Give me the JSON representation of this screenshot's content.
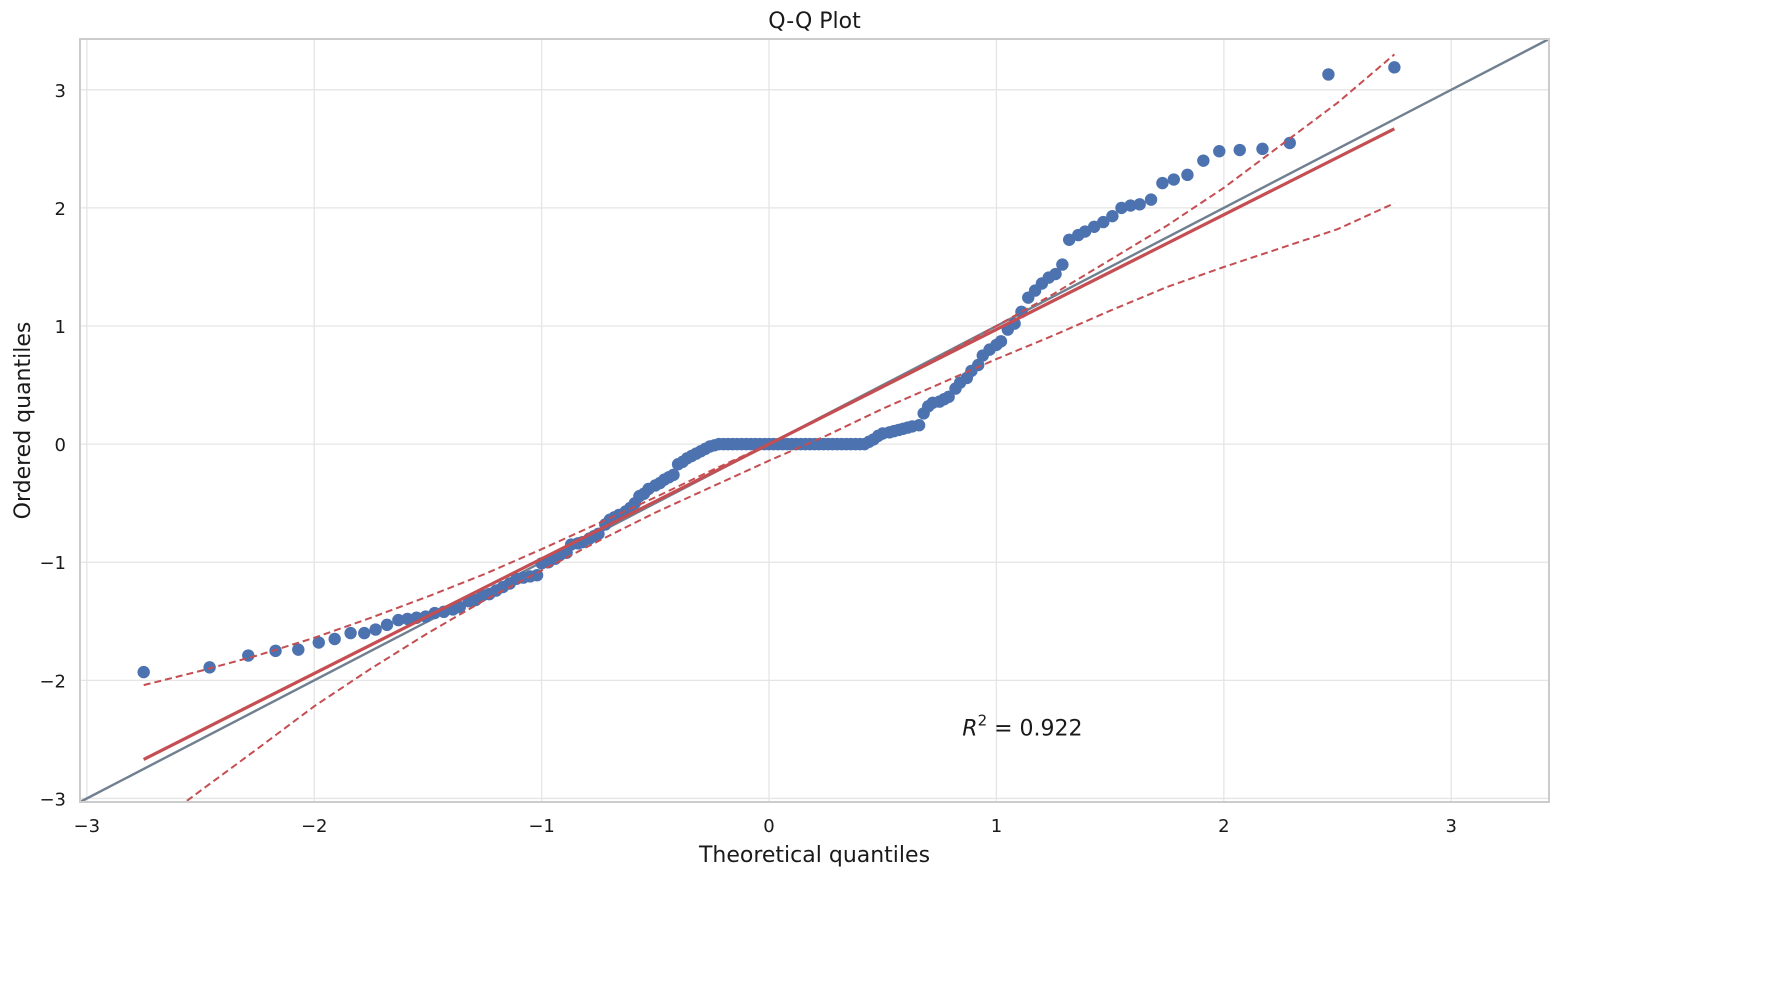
{
  "chart_data": {
    "type": "scatter",
    "title": "Q-Q Plot",
    "xlabel": "Theoretical quantiles",
    "ylabel": "Ordered quantiles",
    "xlim": [
      -3.03,
      3.43
    ],
    "ylim": [
      -3.03,
      3.43
    ],
    "xticks": [
      -3,
      -2,
      -1,
      0,
      1,
      2,
      3
    ],
    "yticks": [
      -3,
      -2,
      -1,
      0,
      1,
      2,
      3
    ],
    "xtick_labels": [
      "−3",
      "−2",
      "−1",
      "0",
      "1",
      "2",
      "3"
    ],
    "ytick_labels": [
      "−3",
      "−2",
      "−1",
      "0",
      "1",
      "2",
      "3"
    ],
    "grid": true,
    "annotation": {
      "r2_label": "R",
      "r2_exp": "2",
      "r2_text": " = 0.922",
      "r2_value": 0.922,
      "x": 0.85,
      "y": -2.4
    },
    "reference_line": {
      "x": [
        -3.03,
        3.43
      ],
      "y": [
        -3.03,
        3.43
      ],
      "color": "#708090"
    },
    "fit_line": {
      "x": [
        -2.75,
        2.75
      ],
      "y": [
        -2.67,
        2.67
      ],
      "color": "#c44e52"
    },
    "ci_upper": {
      "x": [
        -2.75,
        -2.5,
        -2.25,
        -2.0,
        -1.75,
        -1.5,
        -1.25,
        -1.0,
        -0.75,
        -0.5,
        -0.25,
        0.0,
        0.25,
        0.5,
        0.75,
        1.0,
        1.25,
        1.5,
        1.75,
        2.0,
        2.25,
        2.5,
        2.75
      ],
      "y": [
        -2.04,
        -1.92,
        -1.79,
        -1.64,
        -1.47,
        -1.29,
        -1.1,
        -0.89,
        -0.67,
        -0.45,
        -0.22,
        0.0,
        0.24,
        0.48,
        0.74,
        1.0,
        1.27,
        1.56,
        1.85,
        2.17,
        2.53,
        2.89,
        3.3
      ],
      "color": "#c44e52"
    },
    "ci_lower": {
      "x": [
        -2.56,
        -2.25,
        -2.0,
        -1.75,
        -1.5,
        -1.25,
        -1.0,
        -0.75,
        -0.5,
        -0.25,
        0.0,
        0.25,
        0.5,
        0.75,
        1.0,
        1.25,
        1.5,
        1.75,
        2.0,
        2.25,
        2.5,
        2.75
      ],
      "y": [
        -3.02,
        -2.58,
        -2.22,
        -1.9,
        -1.6,
        -1.32,
        -1.07,
        -0.82,
        -0.58,
        -0.36,
        -0.14,
        0.07,
        0.3,
        0.51,
        0.72,
        0.92,
        1.13,
        1.33,
        1.5,
        1.66,
        1.82,
        2.04
      ],
      "color": "#c44e52"
    },
    "series": [
      {
        "color": "#4c72b0",
        "x": [
          -2.75,
          -2.46,
          -2.29,
          -2.17,
          -2.07,
          -1.98,
          -1.91,
          -1.84,
          -1.78,
          -1.73,
          -1.68,
          -1.63,
          -1.59,
          -1.55,
          -1.51,
          -1.47,
          -1.43,
          -1.39,
          -1.36,
          -1.32,
          -1.29,
          -1.26,
          -1.23,
          -1.2,
          -1.17,
          -1.14,
          -1.11,
          -1.08,
          -1.05,
          -1.02,
          -1.0,
          -0.97,
          -0.94,
          -0.92,
          -0.89,
          -0.87,
          -0.84,
          -0.82,
          -0.79,
          -0.77,
          -0.75,
          -0.72,
          -0.7,
          -0.68,
          -0.66,
          -0.63,
          -0.61,
          -0.59,
          -0.57,
          -0.55,
          -0.53,
          -0.5,
          -0.48,
          -0.46,
          -0.44,
          -0.42,
          -0.4,
          -0.38,
          -0.36,
          -0.34,
          -0.32,
          -0.3,
          -0.28,
          -0.26,
          -0.24,
          -0.22,
          -0.2,
          -0.18,
          -0.16,
          -0.14,
          -0.12,
          -0.1,
          -0.08,
          -0.06,
          -0.04,
          -0.02,
          0.0,
          0.02,
          0.04,
          0.06,
          0.08,
          0.1,
          0.12,
          0.14,
          0.16,
          0.18,
          0.2,
          0.22,
          0.24,
          0.26,
          0.28,
          0.3,
          0.32,
          0.34,
          0.36,
          0.38,
          0.4,
          0.42,
          0.44,
          0.46,
          0.48,
          0.5,
          0.53,
          0.55,
          0.57,
          0.59,
          0.61,
          0.63,
          0.66,
          0.68,
          0.7,
          0.72,
          0.75,
          0.77,
          0.79,
          0.82,
          0.84,
          0.87,
          0.89,
          0.92,
          0.94,
          0.97,
          1.0,
          1.02,
          1.05,
          1.08,
          1.11,
          1.14,
          1.17,
          1.2,
          1.23,
          1.26,
          1.29,
          1.32,
          1.36,
          1.39,
          1.43,
          1.47,
          1.51,
          1.55,
          1.59,
          1.63,
          1.68,
          1.73,
          1.78,
          1.84,
          1.91,
          1.98,
          2.07,
          2.17,
          2.29,
          2.46,
          2.75
        ],
        "y": [
          -1.93,
          -1.89,
          -1.79,
          -1.75,
          -1.74,
          -1.68,
          -1.65,
          -1.6,
          -1.6,
          -1.57,
          -1.53,
          -1.49,
          -1.48,
          -1.47,
          -1.46,
          -1.43,
          -1.42,
          -1.4,
          -1.38,
          -1.33,
          -1.32,
          -1.28,
          -1.27,
          -1.24,
          -1.21,
          -1.18,
          -1.14,
          -1.13,
          -1.12,
          -1.11,
          -1.01,
          -1.0,
          -0.97,
          -0.94,
          -0.92,
          -0.85,
          -0.84,
          -0.83,
          -0.8,
          -0.78,
          -0.76,
          -0.68,
          -0.64,
          -0.62,
          -0.6,
          -0.57,
          -0.54,
          -0.5,
          -0.44,
          -0.42,
          -0.38,
          -0.35,
          -0.33,
          -0.3,
          -0.28,
          -0.26,
          -0.17,
          -0.15,
          -0.12,
          -0.1,
          -0.08,
          -0.06,
          -0.04,
          -0.02,
          -0.01,
          0.0,
          0.0,
          0.0,
          0.0,
          0.0,
          0.0,
          0.0,
          0.0,
          0.0,
          0.0,
          0.0,
          0.0,
          0.0,
          0.0,
          0.0,
          0.0,
          0.0,
          0.0,
          0.0,
          0.0,
          0.0,
          0.0,
          0.0,
          0.0,
          0.0,
          0.0,
          0.0,
          0.0,
          0.0,
          0.0,
          0.0,
          0.0,
          0.0,
          0.02,
          0.04,
          0.07,
          0.09,
          0.1,
          0.11,
          0.12,
          0.13,
          0.14,
          0.15,
          0.16,
          0.26,
          0.32,
          0.35,
          0.36,
          0.38,
          0.4,
          0.47,
          0.52,
          0.56,
          0.62,
          0.67,
          0.75,
          0.8,
          0.84,
          0.87,
          0.97,
          1.02,
          1.12,
          1.24,
          1.3,
          1.36,
          1.41,
          1.44,
          1.52,
          1.73,
          1.77,
          1.8,
          1.84,
          1.88,
          1.93,
          2.0,
          2.02,
          2.03,
          2.07,
          2.21,
          2.24,
          2.28,
          2.4,
          2.48,
          2.49,
          2.5,
          2.55,
          3.13,
          3.19
        ]
      }
    ]
  }
}
